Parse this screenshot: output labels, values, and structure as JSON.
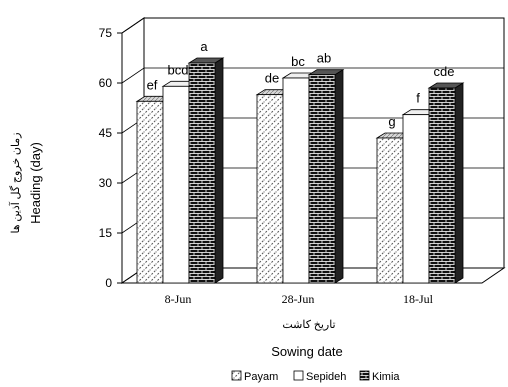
{
  "chart_data": {
    "type": "bar",
    "projection": "3d",
    "categories": [
      "8-Jun",
      "28-Jun",
      "18-Jul"
    ],
    "series": [
      {
        "name": "Payam",
        "values": [
          54.5,
          56.5,
          43.5
        ],
        "letters": [
          "ef",
          "de",
          "g"
        ],
        "pattern": "hatch"
      },
      {
        "name": "Sepideh",
        "values": [
          59.0,
          61.5,
          50.5
        ],
        "letters": [
          "bcd",
          "bc",
          "f"
        ],
        "pattern": "white"
      },
      {
        "name": "Kimia",
        "values": [
          66.0,
          62.5,
          58.5
        ],
        "letters": [
          "a",
          "ab",
          "cde"
        ],
        "pattern": "brick"
      }
    ],
    "ylim": [
      0,
      75
    ],
    "yticks": [
      0,
      15,
      30,
      45,
      60,
      75
    ],
    "ylabel_fa": "زمان خروج گل آذین ها",
    "ylabel_en": "Heading (day)",
    "xlabel_fa": "تاریخ کاشت",
    "xlabel_en": "Sowing date",
    "grid": true,
    "legend_position": "bottom"
  }
}
